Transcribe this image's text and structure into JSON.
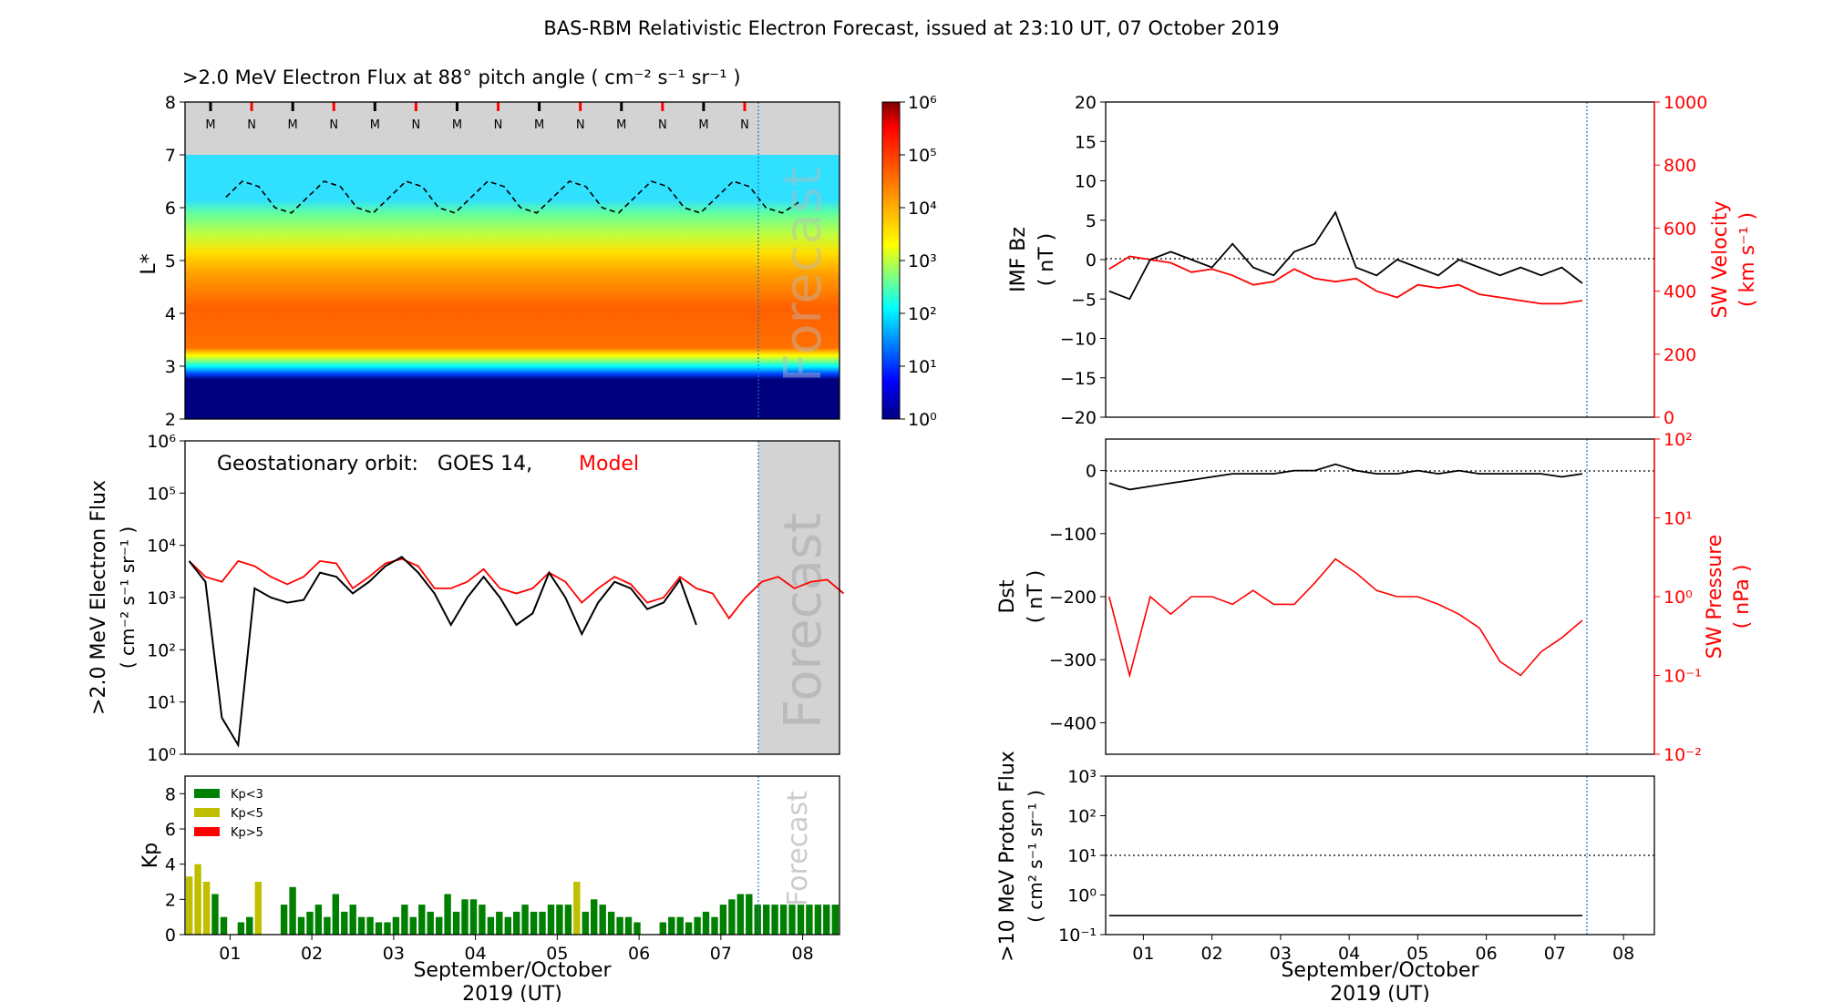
{
  "title": "BAS-RBM Relativistic Electron Forecast, issued at 23:10 UT, 07 October 2019",
  "colors": {
    "model": "#ff0000",
    "obs": "#000000",
    "kp_low": "#008000",
    "kp_mid": "#bfbf00",
    "kp_high": "#ff0000",
    "forecast_line": "#1f77b4",
    "forecast_bg": "#d3d3d3"
  },
  "chart_data": [
    {
      "id": "flux_map",
      "type": "heatmap",
      "title": ">2.0 MeV Electron Flux at 88° pitch angle ( cm⁻² s⁻¹ sr⁻¹ )",
      "ylabel": "L*",
      "ylim": [
        2,
        8
      ],
      "yticks": [
        "2",
        "3",
        "4",
        "5",
        "6",
        "7",
        "8"
      ],
      "colorbar": {
        "scale": "log",
        "ticks": [
          "10⁰",
          "10¹",
          "10²",
          "10³",
          "10⁴",
          "10⁵",
          "10⁶"
        ]
      },
      "orbit_markers": [
        "M",
        "N",
        "M",
        "N",
        "M",
        "N",
        "M",
        "N",
        "M",
        "N",
        "M",
        "N",
        "M",
        "N"
      ],
      "forecast_label": "Forecast",
      "geostationary_boundary_L": [
        6.2,
        6.5,
        6.4,
        6.0,
        5.9,
        6.2,
        6.5,
        6.4,
        6.0,
        5.9,
        6.2,
        6.5,
        6.4,
        6.0,
        5.9,
        6.2,
        6.5,
        6.4,
        6.0,
        5.9,
        6.2,
        6.5,
        6.4,
        6.0,
        5.9,
        6.2,
        6.5,
        6.4,
        6.0,
        5.9,
        6.2,
        6.5,
        6.4,
        6.0,
        5.9,
        6.1
      ]
    },
    {
      "id": "geo_flux",
      "type": "line",
      "ylabel": ">2.0 MeV Electron Flux",
      "ylabel2": "( cm⁻² s⁻¹ sr⁻¹ )",
      "annotation_text": "Geostationary orbit:   GOES 14,",
      "annotation_model": "Model",
      "yscale": "log",
      "ylim": [
        1,
        1000000
      ],
      "yticks": [
        "10⁰",
        "10¹",
        "10²",
        "10³",
        "10⁴",
        "10⁵",
        "10⁶"
      ],
      "forecast_label": "Forecast",
      "x": [
        0.5,
        0.7,
        0.9,
        1.1,
        1.3,
        1.5,
        1.7,
        1.9,
        2.1,
        2.3,
        2.5,
        2.7,
        2.9,
        3.1,
        3.3,
        3.5,
        3.7,
        3.9,
        4.1,
        4.3,
        4.5,
        4.7,
        4.9,
        5.1,
        5.3,
        5.5,
        5.7,
        5.9,
        6.1,
        6.3,
        6.5,
        6.7,
        6.9,
        7.1,
        7.3,
        7.5,
        7.7,
        7.9,
        8.1,
        8.3,
        8.5
      ],
      "series": [
        {
          "name": "GOES 14",
          "values": [
            5000,
            2000,
            5,
            1.5,
            1500,
            1000,
            800,
            900,
            3000,
            2500,
            1200,
            2000,
            4000,
            6000,
            3000,
            1200,
            300,
            1000,
            2500,
            1000,
            300,
            500,
            3000,
            1000,
            200,
            800,
            2000,
            1500,
            600,
            800,
            2200,
            300,
            null,
            null,
            null,
            null,
            null,
            null,
            null,
            null,
            null
          ]
        },
        {
          "name": "Model",
          "values": [
            5000,
            2500,
            2000,
            5000,
            4000,
            2500,
            1800,
            2500,
            5000,
            4500,
            1500,
            2500,
            4500,
            5500,
            4000,
            1500,
            1500,
            2000,
            3500,
            1500,
            1200,
            1500,
            3000,
            2000,
            800,
            1500,
            2500,
            1800,
            800,
            1000,
            2500,
            1500,
            1200,
            400,
            1000,
            2000,
            2500,
            1500,
            2000,
            2200,
            1200
          ]
        }
      ]
    },
    {
      "id": "kp",
      "type": "bar",
      "ylabel": "Kp",
      "ylim": [
        0,
        9
      ],
      "yticks": [
        "0",
        "2",
        "4",
        "6",
        "8"
      ],
      "legend": [
        "Kp<3",
        "Kp<5",
        "Kp>5"
      ],
      "forecast_label": "Forecast",
      "values": [
        3.3,
        4,
        3,
        2.3,
        1,
        0,
        0.7,
        1,
        3,
        0,
        0,
        1.7,
        2.7,
        1,
        1.3,
        1.7,
        1,
        2.3,
        1.3,
        1.7,
        1,
        1,
        0.7,
        0.7,
        1,
        1.7,
        1,
        1.7,
        1.3,
        1,
        2.3,
        1.3,
        2,
        2,
        1.7,
        1,
        1.3,
        1,
        1.3,
        1.7,
        1.3,
        1.3,
        1.7,
        1.7,
        1.7,
        3,
        1.3,
        2,
        1.7,
        1.3,
        1,
        1,
        0.7,
        0,
        0,
        0.7,
        1,
        1,
        0.7,
        1,
        1.3,
        1,
        1.7,
        2,
        2.3,
        2.3,
        1.7,
        1.7,
        1.7,
        1.7,
        1.7,
        1.7,
        1.7,
        1.7,
        1.7,
        1.7
      ],
      "xlabel": "September/October",
      "xlabel2": "2019 (UT)"
    },
    {
      "id": "imf",
      "type": "line",
      "ylabel": "IMF Bz",
      "ylabel_unit": "( nT )",
      "ylim": [
        -20,
        20
      ],
      "yticks": [
        "−20",
        "−15",
        "−10",
        "−5",
        "0",
        "5",
        "10",
        "15",
        "20"
      ],
      "y2label": "SW Velocity",
      "y2label_unit": "( km s⁻¹ )",
      "y2lim": [
        0,
        1000
      ],
      "y2ticks": [
        "0",
        "200",
        "400",
        "600",
        "800",
        "1000"
      ],
      "x": [
        0.5,
        0.8,
        1.1,
        1.4,
        1.7,
        2.0,
        2.3,
        2.6,
        2.9,
        3.2,
        3.5,
        3.8,
        4.1,
        4.4,
        4.7,
        5.0,
        5.3,
        5.6,
        5.9,
        6.2,
        6.5,
        6.8,
        7.1,
        7.4
      ],
      "series": [
        {
          "name": "IMF Bz",
          "values": [
            -4,
            -5,
            0,
            1,
            0,
            -1,
            2,
            -1,
            -2,
            1,
            2,
            6,
            -1,
            -2,
            0,
            -1,
            -2,
            0,
            -1,
            -2,
            -1,
            -2,
            -1,
            -3
          ]
        },
        {
          "name": "SW Velocity",
          "values": [
            470,
            510,
            500,
            490,
            460,
            470,
            450,
            420,
            430,
            470,
            440,
            430,
            440,
            400,
            380,
            420,
            410,
            420,
            390,
            380,
            370,
            360,
            360,
            370
          ]
        }
      ]
    },
    {
      "id": "dst",
      "type": "line",
      "ylabel": "Dst",
      "ylabel_unit": "( nT )",
      "ylim": [
        -450,
        50
      ],
      "yticks": [
        "−400",
        "−300",
        "−200",
        "−100",
        "0"
      ],
      "y2label": "SW Pressure",
      "y2label_unit": "( nPa )",
      "y2scale": "log",
      "y2lim": [
        0.01,
        100
      ],
      "y2ticks": [
        "10⁻²",
        "10⁻¹",
        "10⁰",
        "10¹",
        "10²"
      ],
      "x": [
        0.5,
        0.8,
        1.1,
        1.4,
        1.7,
        2.0,
        2.3,
        2.6,
        2.9,
        3.2,
        3.5,
        3.8,
        4.1,
        4.4,
        4.7,
        5.0,
        5.3,
        5.6,
        5.9,
        6.2,
        6.5,
        6.8,
        7.1,
        7.4
      ],
      "series": [
        {
          "name": "Dst",
          "values": [
            -20,
            -30,
            -25,
            -20,
            -15,
            -10,
            -5,
            -5,
            -5,
            0,
            0,
            10,
            0,
            -5,
            -5,
            0,
            -5,
            0,
            -5,
            -5,
            -5,
            -5,
            -10,
            -5
          ]
        },
        {
          "name": "SW Pressure",
          "values": [
            1,
            0.1,
            1,
            0.6,
            1,
            1,
            0.8,
            1.2,
            0.8,
            0.8,
            1.5,
            3,
            2,
            1.2,
            1,
            1,
            0.8,
            0.6,
            0.4,
            0.15,
            0.1,
            0.2,
            0.3,
            0.5
          ]
        }
      ]
    },
    {
      "id": "proton",
      "type": "line",
      "ylabel": ">10 MeV Proton Flux",
      "ylabel2": "( cm² s⁻¹ sr⁻¹ )",
      "yscale": "log",
      "ylim": [
        0.1,
        1000
      ],
      "yticks": [
        "10⁻¹",
        "10⁰",
        "10¹",
        "10²",
        "10³"
      ],
      "threshold": 10,
      "xticks": [
        "01",
        "02",
        "03",
        "04",
        "05",
        "06",
        "07",
        "08"
      ],
      "xlabel": "September/October",
      "xlabel2": "2019 (UT)",
      "x": [
        0.5,
        1.0,
        1.5,
        2.0,
        2.5,
        3.0,
        3.5,
        4.0,
        4.5,
        5.0,
        5.5,
        6.0,
        6.5,
        7.0,
        7.4
      ],
      "series": [
        {
          "name": "Proton",
          "values": [
            0.3,
            0.3,
            0.3,
            0.3,
            0.3,
            0.3,
            0.3,
            0.3,
            0.3,
            0.3,
            0.3,
            0.3,
            0.3,
            0.3,
            0.3
          ]
        }
      ]
    }
  ],
  "x_axis": {
    "ticks": [
      "01",
      "02",
      "03",
      "04",
      "05",
      "06",
      "07",
      "08"
    ],
    "range": [
      0.45,
      8.45
    ],
    "forecast_start": 7.45
  }
}
